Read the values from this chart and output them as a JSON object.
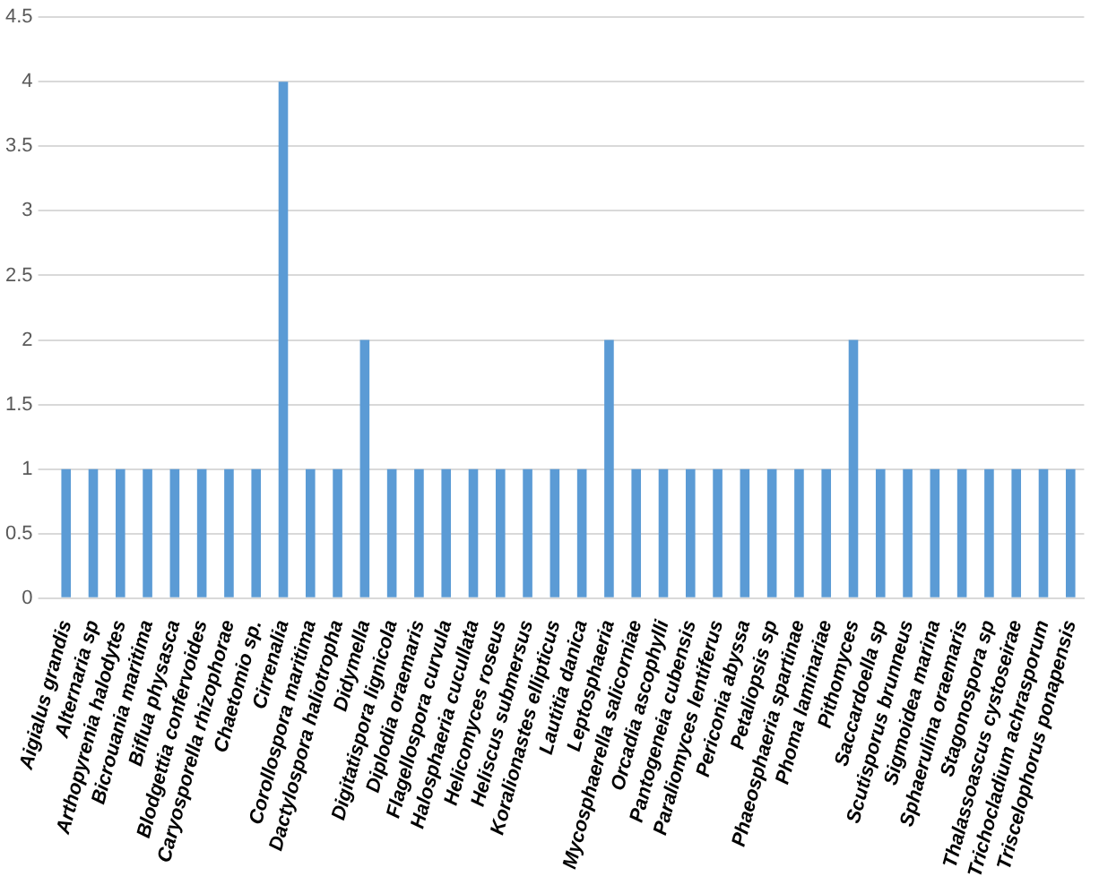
{
  "chart_data": {
    "type": "bar",
    "categories": [
      "Aigialus grandis",
      "Alternaria sp",
      "Arthopyrenia halodytes",
      "Bicrouania maritima",
      "Biflua physasca",
      "Blodgettia confervoides",
      "Caryosporella rhizophorae",
      "Chaetomio sp.",
      "Cirrenalia",
      "Corollospora maritima",
      "Dactylospora haliotropha",
      "Didymella",
      "Digitatispora lignicola",
      "Diplodia oraemaris",
      "Flagellospora curvula",
      "Halosphaeria cucullata",
      "Helicomyces roseus",
      "Heliscus submersus",
      "Koralionastes ellipticus",
      "Lautitia danica",
      "Leptosphaeria",
      "Mycosphaerella salicorniae",
      "Orcadia ascophylli",
      "Pantogeneia cubensis",
      "Paraliomyces lentiferus",
      "Periconia abyssa",
      "Petaliopsis sp",
      "Phaeosphaeria spartinae",
      "Phoma laminariae",
      "Pithomyces",
      "Saccardoella sp",
      "Scutisporus brunneus",
      "Sigmoidea marina",
      "Sphaerulina oraemaris",
      "Stagonospora sp",
      "Thalassoascus cystoseirae",
      "Trichocladium achrasporum",
      "Triscelophorus ponapensis"
    ],
    "values": [
      1,
      1,
      1,
      1,
      1,
      1,
      1,
      1,
      4,
      1,
      1,
      2,
      1,
      1,
      1,
      1,
      1,
      1,
      1,
      1,
      2,
      1,
      1,
      1,
      1,
      1,
      1,
      1,
      1,
      2,
      1,
      1,
      1,
      1,
      1,
      1,
      1,
      1
    ],
    "color": "#5b9bd5",
    "ylim": [
      0,
      4.5
    ],
    "yticks": [
      0,
      0.5,
      1,
      1.5,
      2,
      2.5,
      3,
      3.5,
      4,
      4.5
    ],
    "grid": "y"
  }
}
